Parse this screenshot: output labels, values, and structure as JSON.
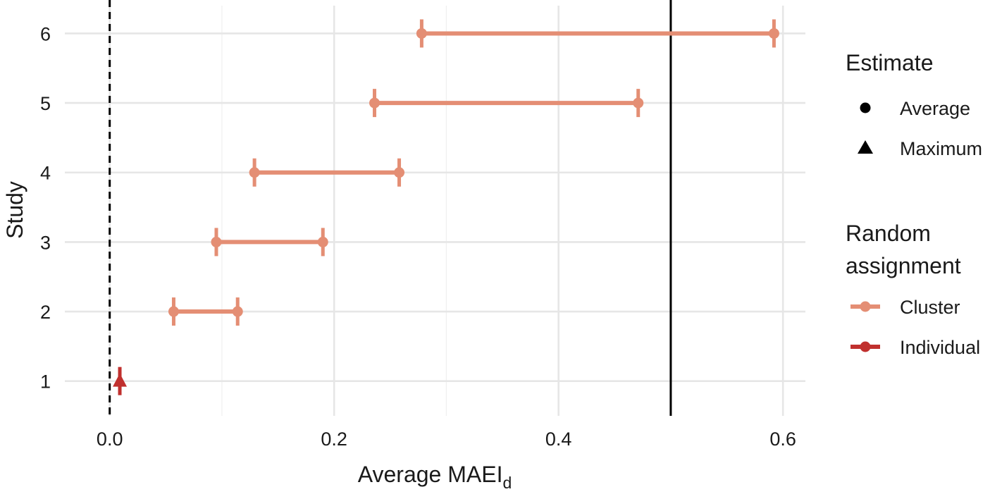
{
  "chart_data": {
    "type": "dot-range",
    "xlabel": "Average MAEI",
    "xlabel_subscript": "d",
    "ylabel": "Study",
    "xlim": [
      -0.04,
      0.62
    ],
    "ylim": [
      0.5,
      6.4
    ],
    "x_ticks": [
      0.0,
      0.2,
      0.4,
      0.6
    ],
    "x_tick_labels": [
      "0.0",
      "0.2",
      "0.4",
      "0.6"
    ],
    "y_ticks": [
      1,
      2,
      3,
      4,
      5,
      6
    ],
    "y_tick_labels": [
      "1",
      "2",
      "3",
      "4",
      "5",
      "6"
    ],
    "reference_lines": [
      {
        "x": 0.0,
        "style": "dashed"
      },
      {
        "x": 0.5,
        "style": "solid"
      }
    ],
    "studies": [
      {
        "study": 1,
        "assignment": "Individual",
        "estimate": "Maximum",
        "values": [
          0.009
        ]
      },
      {
        "study": 2,
        "assignment": "Cluster",
        "estimate": "Average",
        "values": [
          0.057,
          0.114
        ]
      },
      {
        "study": 3,
        "assignment": "Cluster",
        "estimate": "Average",
        "values": [
          0.095,
          0.19
        ]
      },
      {
        "study": 4,
        "assignment": "Cluster",
        "estimate": "Average",
        "values": [
          0.129,
          0.258
        ]
      },
      {
        "study": 5,
        "assignment": "Cluster",
        "estimate": "Average",
        "values": [
          0.236,
          0.471
        ]
      },
      {
        "study": 6,
        "assignment": "Cluster",
        "estimate": "Average",
        "values": [
          0.278,
          0.592
        ]
      }
    ],
    "legend": {
      "placement": "right",
      "estimate": {
        "title": "Estimate",
        "items": [
          {
            "label": "Average",
            "shape": "circle"
          },
          {
            "label": "Maximum",
            "shape": "triangle"
          }
        ]
      },
      "assignment": {
        "title_lines": [
          "Random",
          "assignment"
        ],
        "items": [
          {
            "label": "Cluster",
            "color": "#e48e74"
          },
          {
            "label": "Individual",
            "color": "#c0302e"
          }
        ]
      }
    },
    "colors": {
      "Cluster": "#e48e74",
      "Individual": "#c0302e",
      "grid": "#e6e6e6",
      "reference": "#000000"
    },
    "grid": true
  }
}
